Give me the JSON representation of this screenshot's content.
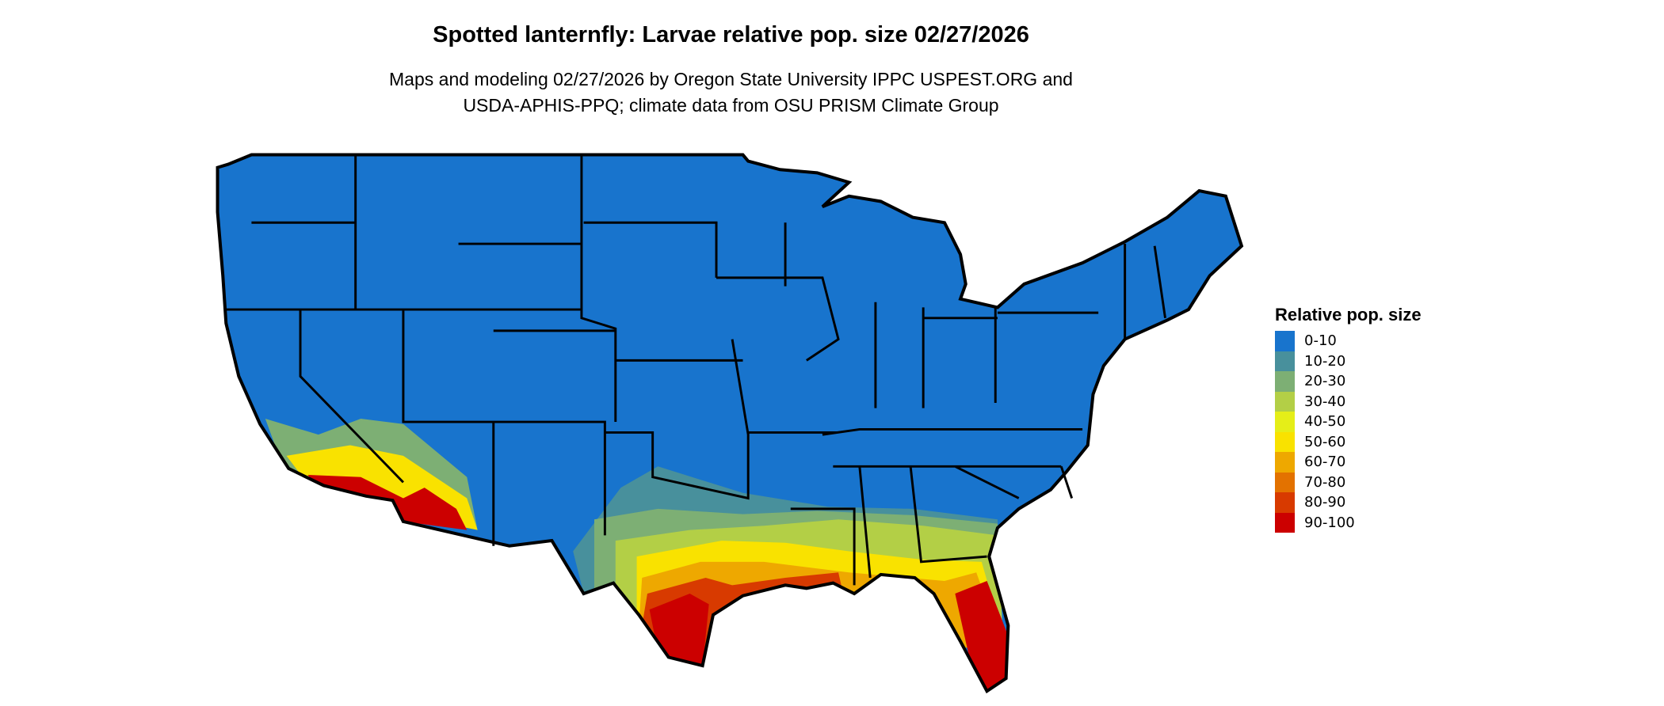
{
  "title": "Spotted lanternfly: Larvae relative pop. size 02/27/2026",
  "subtitle_lines": [
    "Maps and modeling 02/27/2026 by Oregon State University IPPC USPEST.ORG and",
    "USDA-APHIS-PPQ; climate data from OSU PRISM Climate Group"
  ],
  "legend": {
    "title": "Relative pop. size",
    "items": [
      {
        "label": "0-10",
        "color": "#1874CD"
      },
      {
        "label": "10-20",
        "color": "#48909C"
      },
      {
        "label": "20-30",
        "color": "#7DAF74"
      },
      {
        "label": "30-40",
        "color": "#B3CF46"
      },
      {
        "label": "40-50",
        "color": "#E5EE18"
      },
      {
        "label": "50-60",
        "color": "#F9E200"
      },
      {
        "label": "60-70",
        "color": "#EEA800"
      },
      {
        "label": "70-80",
        "color": "#E37200"
      },
      {
        "label": "80-90",
        "color": "#D83A00"
      },
      {
        "label": "90-100",
        "color": "#CC0000"
      }
    ]
  },
  "map": {
    "region": "Contiguous United States",
    "border_color": "#000000"
  }
}
